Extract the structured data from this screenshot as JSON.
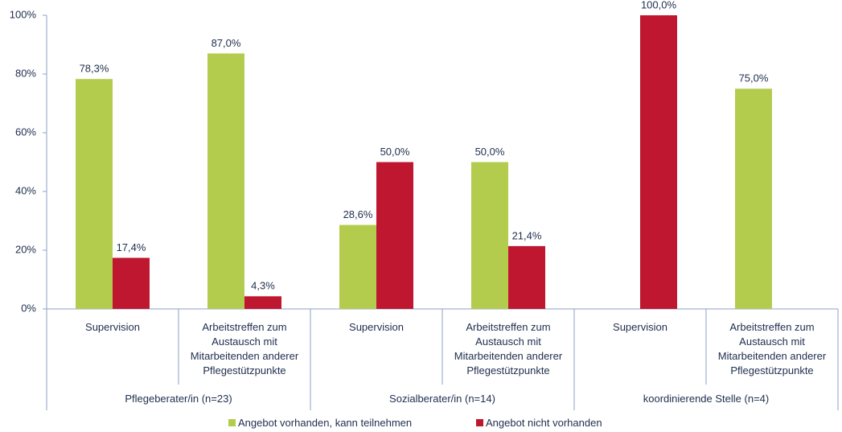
{
  "chart_data": {
    "type": "bar",
    "categories": [
      "Supervision",
      "Arbeitstreffen zum Austausch mit Mitarbeitenden anderer Pflegestützpunkte",
      "Supervision",
      "Arbeitstreffen zum Austausch mit Mitarbeitenden anderer Pflegestützpunkte",
      "Supervision",
      "Arbeitstreffen zum Austausch mit Mitarbeitenden anderer Pflegestützpunkte"
    ],
    "groups": [
      "Pflegeberater/in (n=23)",
      "Sozialberater/in (n=14)",
      "koordinierende Stelle (n=4)"
    ],
    "series": [
      {
        "name": "Angebot vorhanden, kann teilnehmen",
        "color": "#b3cc4e",
        "values": [
          78.3,
          87.0,
          28.6,
          50.0,
          null,
          75.0
        ],
        "value_labels": [
          "78,3%",
          "87,0%",
          "28,6%",
          "50,0%",
          null,
          "75,0%"
        ]
      },
      {
        "name": "Angebot nicht vorhanden",
        "color": "#bf1730",
        "values": [
          17.4,
          4.3,
          50.0,
          21.4,
          100.0,
          null
        ],
        "value_labels": [
          "17,4%",
          "4,3%",
          "50,0%",
          "21,4%",
          "100,0%",
          null
        ]
      }
    ],
    "ylim": [
      0,
      100
    ],
    "yticks": [
      {
        "value": 0,
        "label": "0%"
      },
      {
        "value": 20,
        "label": "20%"
      },
      {
        "value": 40,
        "label": "40%"
      },
      {
        "value": 60,
        "label": "60%"
      },
      {
        "value": 80,
        "label": "80%"
      },
      {
        "value": 100,
        "label": "100%"
      }
    ],
    "grid": false,
    "legend": "bottom"
  }
}
